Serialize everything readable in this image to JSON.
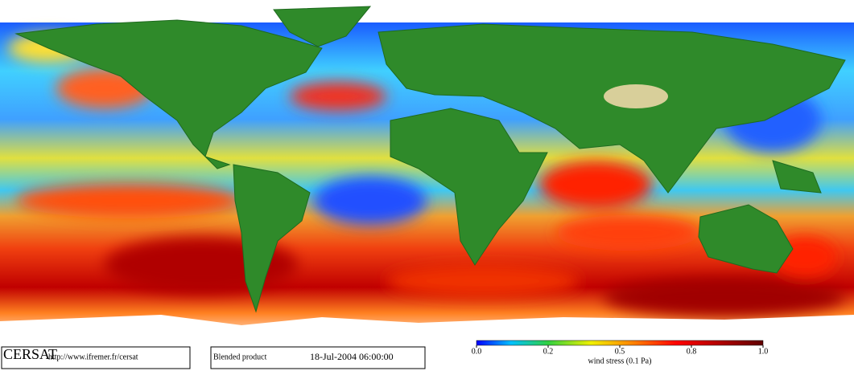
{
  "logo": "CERSAT",
  "url": "http://www.ifremer.fr/cersat",
  "product": "Blended product",
  "date": "18-Jul-2004 06:00:00",
  "colorbar": {
    "label": "wind stress (0.1 Pa)",
    "ticks": [
      {
        "value": 0,
        "label": "0.0"
      },
      {
        "value": 0.2,
        "label": "0.2"
      },
      {
        "value": 0.5,
        "label": "0.5"
      },
      {
        "value": 0.8,
        "label": "0.8"
      },
      {
        "value": 1,
        "label": "1.0"
      }
    ]
  }
}
